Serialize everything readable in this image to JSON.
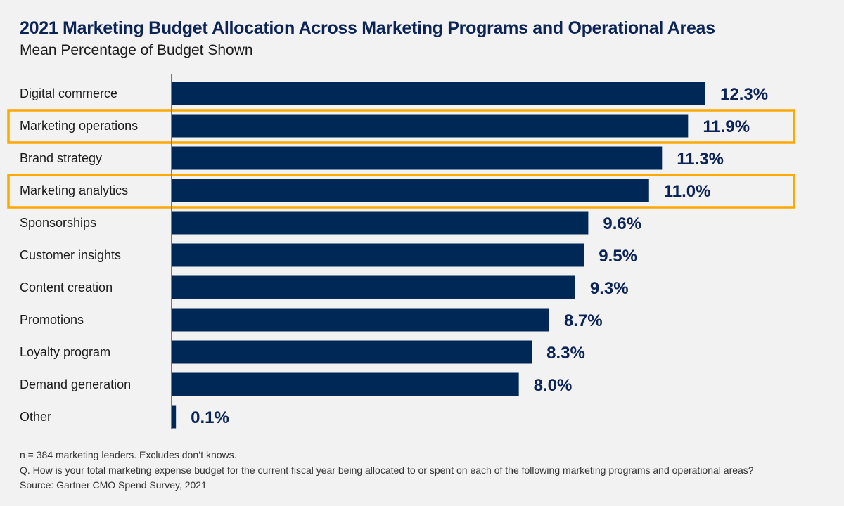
{
  "chart_data": {
    "type": "bar",
    "orientation": "horizontal",
    "title": "2021 Marketing Budget Allocation Across Marketing Programs and Operational Areas",
    "subtitle": "Mean Percentage of Budget Shown",
    "categories": [
      "Digital commerce",
      "Marketing operations",
      "Brand strategy",
      "Marketing analytics",
      "Sponsorships",
      "Customer insights",
      "Content creation",
      "Promotions",
      "Loyalty program",
      "Demand generation",
      "Other"
    ],
    "values": [
      12.3,
      11.9,
      11.3,
      11.0,
      9.6,
      9.5,
      9.3,
      8.7,
      8.3,
      8.0,
      0.1
    ],
    "labels": [
      "12.3%",
      "11.9%",
      "11.3%",
      "11.0%",
      "9.6%",
      "9.5%",
      "9.3%",
      "8.7%",
      "8.3%",
      "8.0%",
      "0.1%"
    ],
    "highlighted": [
      "Marketing operations",
      "Marketing analytics"
    ],
    "xlim": [
      0,
      12.3
    ],
    "grid": false,
    "colors": {
      "bar": "#002856",
      "highlight": "#ffa800",
      "label": "#0b2355"
    }
  },
  "footnotes": [
    "n = 384 marketing leaders. Excludes don’t knows.",
    "Q. How is your total marketing expense budget for the current fiscal year being allocated to or spent on each of the following marketing programs and operational areas?",
    "Source: Gartner CMO Spend Survey, 2021"
  ]
}
